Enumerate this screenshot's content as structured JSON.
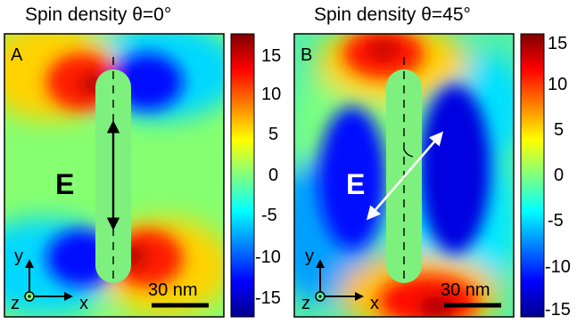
{
  "panels": [
    {
      "id": "A",
      "title": "Spin density θ=0°",
      "letter": "A",
      "field_label": "E",
      "field_arrow_angle_deg": 0,
      "axis_labels": {
        "y": "y",
        "x": "x",
        "z": "z"
      },
      "scale_bar": "30 nm",
      "colorbar_ticks": [
        "15",
        "10",
        "5",
        "0",
        "-5",
        "-10",
        "-15"
      ]
    },
    {
      "id": "B",
      "title": "Spin density θ=45°",
      "letter": "B",
      "field_label": "E",
      "field_arrow_angle_deg": 45,
      "axis_labels": {
        "y": "y",
        "x": "x",
        "z": "z"
      },
      "scale_bar": "30 nm",
      "colorbar_ticks": [
        "15",
        "10",
        "5",
        "0",
        "-5",
        "-10",
        "-15"
      ]
    }
  ],
  "colormap": [
    "#00008f",
    "#0000ff",
    "#00ffff",
    "#80ff80",
    "#ffff00",
    "#ff0000",
    "#800000"
  ]
}
